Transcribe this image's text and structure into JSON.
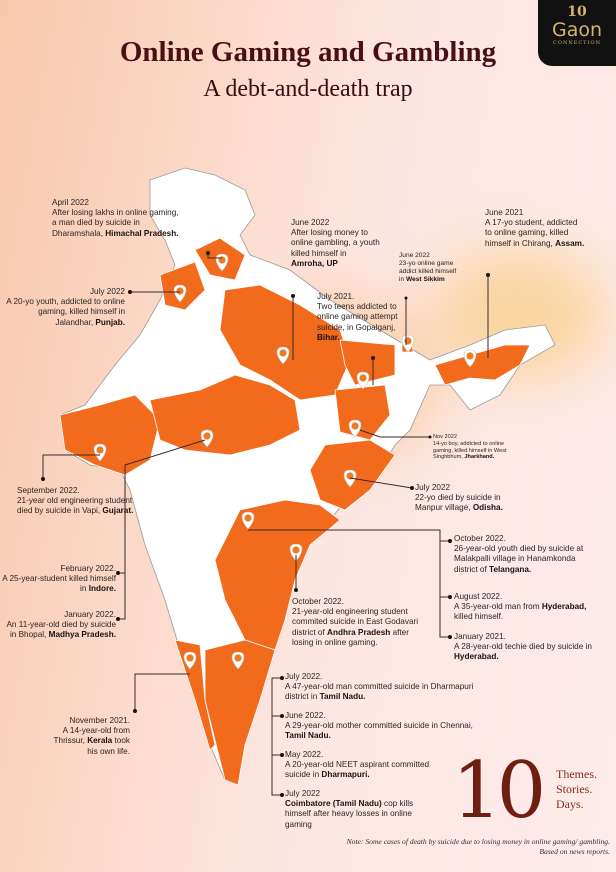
{
  "header": {
    "title": "Online Gaming and Gambling",
    "subtitle": "A debt-and-death trap"
  },
  "logo": {
    "badge": "10",
    "name": "Gaon",
    "tagline": "CONNECTION"
  },
  "colors": {
    "highlight_state": "#f26a1b",
    "title": "#4a0f14",
    "map_base": "#ffffff"
  },
  "annotations": [
    {
      "id": "himachal",
      "date": "April 2022",
      "pre": "After losing lakhs in online gaming, a man died by suicide in Dharamshala,",
      "bold": "Himachal Pradesh.",
      "post": ""
    },
    {
      "id": "punjab",
      "date": "July 2022",
      "pre": "A 20-yo youth, addicted to online gaming, killed himself in Jalandhar,",
      "bold": "Punjab.",
      "post": ""
    },
    {
      "id": "amroha",
      "date": "June 2022",
      "pre": "After losing money to online gambling, a youth killed himself in",
      "bold": "Amroha, UP",
      "post": ""
    },
    {
      "id": "bihar",
      "date": "July 2021.",
      "pre": "Two teens addicted to online gaming attempt suicide, in Gopalganj,",
      "bold": "Bihar.",
      "post": ""
    },
    {
      "id": "sikkim",
      "date": "June 2022",
      "pre": "23-yo online game addict killed himself in",
      "bold": "West Sikkim",
      "post": ""
    },
    {
      "id": "assam",
      "date": "June 2021",
      "pre": "A 17-yo student, addicted to online gaming, killed himself in Chirang,",
      "bold": "Assam.",
      "post": ""
    },
    {
      "id": "jharkhand",
      "date": "Nov 2022",
      "pre": "14-yo boy, addicted to online gaming, killed himself in West Singhbhum,",
      "bold": "Jharkhand.",
      "post": ""
    },
    {
      "id": "odisha",
      "date": "July 2022",
      "pre": "22-yo died by suicide in Manpur village,",
      "bold": "Odisha.",
      "post": ""
    },
    {
      "id": "gujarat",
      "date": "September 2022.",
      "pre": "21-year old engineering student died by suicide in  Vapi,",
      "bold": "Gujarat.",
      "post": ""
    },
    {
      "id": "indore",
      "date": "February 2022.",
      "pre": "A 25-year-student killed himself in",
      "bold": "Indore.",
      "post": ""
    },
    {
      "id": "bhopal",
      "date": "January 2022.",
      "pre": "An 11-year-old died by suicide in Bhopal,",
      "bold": "Madhya Pradesh.",
      "post": ""
    },
    {
      "id": "telangana",
      "date": "October 2022.",
      "pre": "26-year-old youth died by suicide at Malakpalli village in Hanamkonda district of",
      "bold": "Telangana.",
      "post": ""
    },
    {
      "id": "hyderabad1",
      "date": "August 2022.",
      "pre": "A 35-year-old man from",
      "bold": "Hyderabad,",
      "post": "killed himself."
    },
    {
      "id": "hyderabad2",
      "date": "January 2021.",
      "pre": "A 28-year-old techie died by suicide in",
      "bold": "Hyderabad.",
      "post": ""
    },
    {
      "id": "andhra",
      "date": "October 2022.",
      "pre": "21-year-old engineering student commited suicide in East Godavari district of",
      "bold": "Andhra Pradesh",
      "post": "after losing in online gaming."
    },
    {
      "id": "dharmapuri1",
      "date": "July 2022.",
      "pre": "A 47-year-old man committed suicide in Dharmapuri district in",
      "bold": "Tamil Nadu.",
      "post": ""
    },
    {
      "id": "chennai",
      "date": "June 2022.",
      "pre": "A 29-year-old mother committed suicide in Chennai,",
      "bold": "Tamil Nadu.",
      "post": ""
    },
    {
      "id": "dharmapuri2",
      "date": "May 2022.",
      "pre": "A 20-year-old NEET aspirant committed suicide in",
      "bold": "Dharmapuri.",
      "post": ""
    },
    {
      "id": "coimbatore",
      "date": "July 2022",
      "pre": "",
      "bold": "Coimbatore (Tamil Nadu)",
      "post": "cop kills himself after heavy losses in online gaming"
    },
    {
      "id": "kerala",
      "date": "November 2021.",
      "pre": "A 14-year-old from Thrissur,",
      "bold": "Kerala",
      "post": "took his own life."
    }
  ],
  "series_badge": {
    "number": "10",
    "words": [
      "Themes.",
      "Stories.",
      "Days."
    ]
  },
  "note": "Note: Some cases of death by suicide due to losing money in online gaming/ gambling. Based on news reports."
}
